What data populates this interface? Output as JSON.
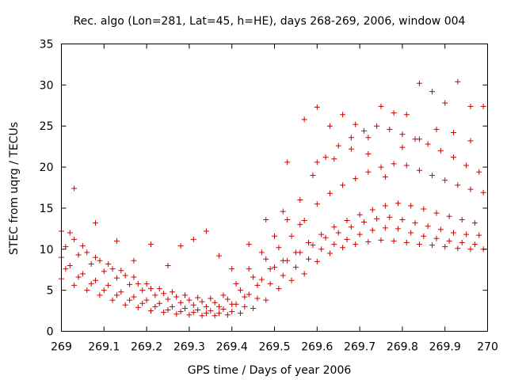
{
  "chart_data": {
    "type": "scatter",
    "title": "Rec. algo (Lon=281, Lat=45, h=HE), days 268-269, 2006, window 004",
    "xlabel": "GPS time / Days of year 2006",
    "ylabel": "STEC from uqrg / TECUs",
    "xlim": [
      269,
      270
    ],
    "ylim": [
      0,
      35
    ],
    "x_ticks": [
      "269",
      "269.1",
      "269.2",
      "269.3",
      "269.4",
      "269.5",
      "269.6",
      "269.7",
      "269.8",
      "269.9",
      "270"
    ],
    "y_ticks": [
      "0",
      "5",
      "10",
      "15",
      "20",
      "25",
      "30",
      "35"
    ],
    "marker": "+",
    "marker_color": "#cc0000",
    "grid": false,
    "series": [
      {
        "name": "track-1",
        "x": [
          269.0,
          269.03,
          269.06,
          269.09,
          269.12,
          269.15,
          269.18,
          269.21,
          269.24,
          269.27,
          269.3,
          269.33,
          269.36,
          269.39,
          269.42,
          269.45,
          269.48,
          269.51,
          269.54,
          269.57,
          269.6,
          269.63,
          269.66,
          269.69,
          269.72,
          269.75,
          269.78,
          269.81,
          269.84,
          269.87,
          269.9,
          269.93,
          269.96,
          269.99
        ],
        "y": [
          6.4,
          5.6,
          5.0,
          4.4,
          3.8,
          3.2,
          2.9,
          2.5,
          2.3,
          2.1,
          2.0,
          1.9,
          1.9,
          2.0,
          2.2,
          2.8,
          3.8,
          5.2,
          6.2,
          7.0,
          8.5,
          9.5,
          10.2,
          10.6,
          10.9,
          11.1,
          11.0,
          10.8,
          10.6,
          10.5,
          10.3,
          10.1,
          10.0,
          10.0
        ]
      },
      {
        "name": "track-2",
        "x": [
          269.01,
          269.04,
          269.07,
          269.1,
          269.13,
          269.16,
          269.19,
          269.22,
          269.25,
          269.28,
          269.31,
          269.34,
          269.37,
          269.4,
          269.43,
          269.46,
          269.49,
          269.52,
          269.55,
          269.58,
          269.61,
          269.64,
          269.67,
          269.7,
          269.73,
          269.76,
          269.79,
          269.82,
          269.85,
          269.88,
          269.91,
          269.94,
          269.97
        ],
        "y": [
          7.6,
          6.6,
          5.8,
          5.0,
          4.4,
          3.8,
          3.4,
          3.0,
          2.6,
          2.4,
          2.3,
          2.2,
          2.2,
          2.4,
          3.0,
          4.0,
          5.8,
          6.8,
          7.8,
          8.8,
          10.0,
          10.6,
          11.2,
          11.8,
          12.3,
          12.6,
          12.5,
          12.0,
          11.6,
          11.3,
          11.0,
          10.8,
          10.6
        ]
      },
      {
        "name": "track-3",
        "x": [
          269.0,
          269.02,
          269.05,
          269.08,
          269.11,
          269.14,
          269.17,
          269.2,
          269.23,
          269.26,
          269.29,
          269.32,
          269.35,
          269.38,
          269.41,
          269.44,
          269.47,
          269.5,
          269.53,
          269.56,
          269.59,
          269.62,
          269.65,
          269.68,
          269.71,
          269.74,
          269.77,
          269.8,
          269.83,
          269.86,
          269.89,
          269.92,
          269.95,
          269.98
        ],
        "y": [
          9.0,
          8.0,
          7.0,
          6.2,
          5.6,
          4.8,
          4.2,
          3.8,
          3.4,
          3.0,
          2.8,
          2.6,
          2.5,
          2.7,
          3.3,
          4.5,
          6.3,
          7.8,
          8.6,
          9.6,
          10.5,
          11.4,
          12.0,
          12.7,
          13.3,
          13.7,
          13.9,
          13.6,
          13.2,
          12.8,
          12.4,
          12.0,
          11.8,
          11.7
        ]
      },
      {
        "name": "track-4",
        "x": [
          269.01,
          269.04,
          269.07,
          269.1,
          269.13,
          269.16,
          269.19,
          269.22,
          269.25,
          269.28,
          269.31,
          269.34,
          269.37,
          269.4,
          269.43,
          269.46,
          269.49,
          269.52,
          269.55,
          269.58,
          269.61,
          269.64,
          269.67,
          269.7,
          269.73,
          269.76,
          269.79,
          269.82,
          269.85,
          269.88,
          269.91,
          269.94,
          269.97
        ],
        "y": [
          10.3,
          9.3,
          8.2,
          7.3,
          6.5,
          5.7,
          5.0,
          4.4,
          3.9,
          3.5,
          3.2,
          3.0,
          3.0,
          3.3,
          4.2,
          5.6,
          7.6,
          8.6,
          9.6,
          10.8,
          11.8,
          12.7,
          13.5,
          14.2,
          14.8,
          15.3,
          15.6,
          15.3,
          14.9,
          14.4,
          14.0,
          13.6,
          13.2
        ]
      },
      {
        "name": "track-5",
        "x": [
          269.0,
          269.03,
          269.06,
          269.09,
          269.12,
          269.15,
          269.18,
          269.21,
          269.24,
          269.27,
          269.3,
          269.33,
          269.36,
          269.39,
          269.42,
          269.45,
          269.48,
          269.51,
          269.54,
          269.57,
          269.6,
          269.63,
          269.66,
          269.69,
          269.72,
          269.75,
          269.78,
          269.81,
          269.84,
          269.87,
          269.9,
          269.93,
          269.96,
          269.99
        ],
        "y": [
          12.2,
          11.2,
          9.6,
          8.6,
          7.6,
          6.8,
          5.8,
          5.2,
          4.6,
          4.2,
          3.8,
          3.6,
          3.5,
          3.9,
          5.0,
          6.6,
          8.8,
          10.2,
          11.6,
          13.5,
          15.5,
          16.8,
          17.8,
          18.6,
          19.4,
          20.0,
          20.4,
          20.2,
          19.6,
          19.0,
          18.4,
          17.8,
          17.3,
          16.9
        ]
      },
      {
        "name": "track-6",
        "x": [
          269.02,
          269.05,
          269.08,
          269.11,
          269.14,
          269.17,
          269.2,
          269.23,
          269.26,
          269.29,
          269.32,
          269.35,
          269.38,
          269.41,
          269.44,
          269.47,
          269.5,
          269.53,
          269.56,
          269.59,
          269.62,
          269.65,
          269.68,
          269.71,
          269.74,
          269.77,
          269.8,
          269.83,
          269.86,
          269.89,
          269.92,
          269.95,
          269.98
        ],
        "y": [
          12.0,
          10.4,
          9.0,
          8.2,
          7.4,
          6.6,
          5.8,
          5.2,
          4.8,
          4.4,
          4.1,
          4.0,
          4.4,
          5.8,
          7.6,
          9.6,
          11.6,
          13.6,
          16.0,
          19.0,
          21.2,
          22.6,
          23.6,
          24.4,
          25.0,
          24.6,
          24.0,
          23.4,
          22.8,
          22.0,
          21.2,
          20.2,
          19.4
        ]
      },
      {
        "name": "track-7",
        "x": [
          269.03,
          269.08,
          269.13,
          269.17,
          269.21,
          269.25,
          269.28,
          269.31,
          269.34,
          269.37,
          269.4,
          269.44,
          269.48,
          269.52,
          269.56,
          269.6,
          269.64,
          269.68,
          269.72,
          269.76,
          269.8,
          269.84,
          269.88,
          269.92,
          269.96
        ],
        "y": [
          17.4,
          13.2,
          11.0,
          8.6,
          10.6,
          8.0,
          10.4,
          11.2,
          12.2,
          9.2,
          7.6,
          10.6,
          13.6,
          14.6,
          13.0,
          20.6,
          21.0,
          22.2,
          21.6,
          18.8,
          22.4,
          23.4,
          24.6,
          24.2,
          23.2
        ]
      },
      {
        "name": "track-8",
        "x": [
          269.53,
          269.57,
          269.6,
          269.63,
          269.66,
          269.69,
          269.72,
          269.75,
          269.78,
          269.81,
          269.84,
          269.87,
          269.9,
          269.93,
          269.96,
          269.99
        ],
        "y": [
          20.6,
          25.8,
          27.3,
          25.0,
          26.4,
          25.2,
          23.6,
          27.4,
          26.6,
          26.4,
          30.2,
          29.2,
          27.8,
          30.4,
          27.4,
          27.4
        ]
      }
    ]
  }
}
